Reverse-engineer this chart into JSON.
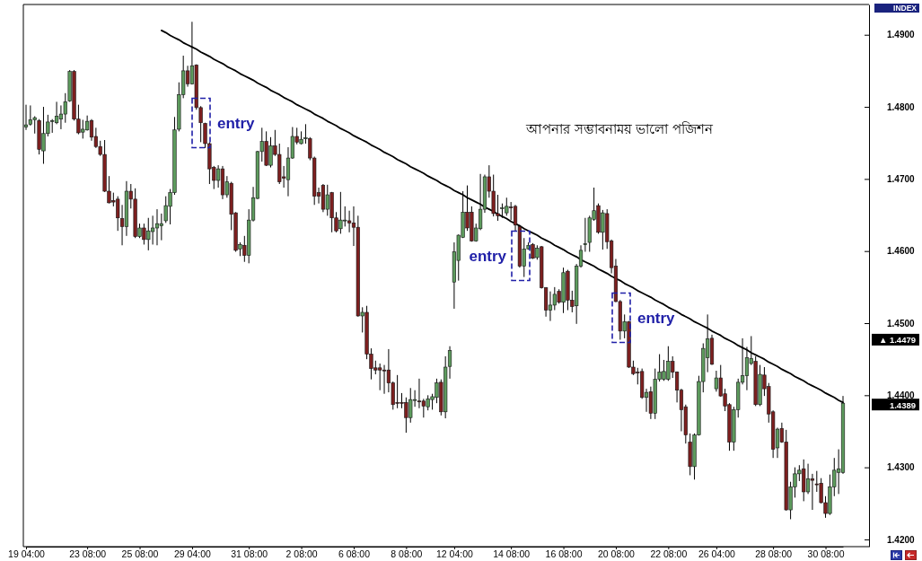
{
  "chart_data": {
    "type": "candlestick",
    "title": "আপনার সম্ভাবনাময় ভালো পজিশন",
    "categories": [
      "19 04:00",
      null,
      null,
      null,
      null,
      null,
      null,
      null,
      null,
      null,
      null,
      null,
      null,
      null,
      "23 08:00",
      null,
      null,
      null,
      null,
      null,
      null,
      null,
      null,
      null,
      null,
      null,
      "25 08:00",
      null,
      null,
      null,
      null,
      null,
      null,
      null,
      null,
      null,
      null,
      null,
      "29 04:00",
      null,
      null,
      null,
      null,
      null,
      null,
      null,
      null,
      null,
      null,
      null,
      null,
      "31 08:00",
      null,
      null,
      null,
      null,
      null,
      null,
      null,
      null,
      null,
      null,
      null,
      "2 08:00",
      null,
      null,
      null,
      null,
      null,
      null,
      null,
      null,
      null,
      null,
      null,
      "6 08:00",
      null,
      null,
      null,
      null,
      null,
      null,
      null,
      null,
      null,
      null,
      null,
      "8 08:00",
      null,
      null,
      null,
      null,
      null,
      null,
      null,
      null,
      null,
      null,
      "12 04:00",
      null,
      null,
      null,
      null,
      null,
      null,
      null,
      null,
      null,
      null,
      null,
      null,
      "14 08:00",
      null,
      null,
      null,
      null,
      null,
      null,
      null,
      null,
      null,
      null,
      null,
      "16 08:00",
      null,
      null,
      null,
      null,
      null,
      null,
      null,
      null,
      null,
      null,
      null,
      "20 08:00",
      null,
      null,
      null,
      null,
      null,
      null,
      null,
      null,
      null,
      null,
      null,
      "22 08:00",
      null,
      null,
      null,
      null,
      null,
      null,
      null,
      null,
      null,
      null,
      "26 04:00",
      null,
      null,
      null,
      null,
      null,
      null,
      null,
      null,
      null,
      null,
      null,
      null,
      "28 08:00",
      null,
      null,
      null,
      null,
      null,
      null,
      null,
      null,
      null,
      null,
      null,
      "30 08:00",
      null,
      null,
      null,
      null
    ],
    "ohlc": [
      [
        1.4772,
        1.4803,
        1.4768,
        1.4775
      ],
      [
        1.4776,
        1.4802,
        1.4774,
        1.4782
      ],
      [
        1.4782,
        1.4787,
        1.4763,
        1.4785
      ],
      [
        1.4781,
        1.4783,
        1.4734,
        1.4741
      ],
      [
        1.4739,
        1.48,
        1.4721,
        1.4763
      ],
      [
        1.4763,
        1.4789,
        1.4759,
        1.4779
      ],
      [
        1.478,
        1.4783,
        1.4764,
        1.4781
      ],
      [
        1.4778,
        1.4807,
        1.4776,
        1.4787
      ],
      [
        1.4783,
        1.4802,
        1.4769,
        1.479
      ],
      [
        1.479,
        1.4819,
        1.4778,
        1.4807
      ],
      [
        1.4808,
        1.4851,
        1.4807,
        1.4849
      ],
      [
        1.4849,
        1.4851,
        1.4781,
        1.4783
      ],
      [
        1.4783,
        1.4803,
        1.4762,
        1.4764
      ],
      [
        1.4765,
        1.4782,
        1.4756,
        1.4769
      ],
      [
        1.4768,
        1.4788,
        1.4767,
        1.478
      ],
      [
        1.4781,
        1.4783,
        1.4753,
        1.4758
      ],
      [
        1.4759,
        1.4771,
        1.4743,
        1.4745
      ],
      [
        1.4745,
        1.4753,
        1.4732,
        1.4734
      ],
      [
        1.4734,
        1.4754,
        1.4682,
        1.4683
      ],
      [
        1.4683,
        1.4704,
        1.4666,
        1.4667
      ],
      [
        1.467,
        1.4681,
        1.4662,
        1.4668
      ],
      [
        1.4672,
        1.4676,
        1.4628,
        1.4646
      ],
      [
        1.4645,
        1.4664,
        1.4608,
        1.4634
      ],
      [
        1.4634,
        1.4697,
        1.4621,
        1.4683
      ],
      [
        1.4683,
        1.4693,
        1.4659,
        1.4672
      ],
      [
        1.4672,
        1.4687,
        1.4618,
        1.462
      ],
      [
        1.462,
        1.4638,
        1.4618,
        1.4632
      ],
      [
        1.4632,
        1.4638,
        1.4609,
        1.4616
      ],
      [
        1.4616,
        1.4646,
        1.4601,
        1.4628
      ],
      [
        1.4627,
        1.4649,
        1.4609,
        1.4632
      ],
      [
        1.4632,
        1.4658,
        1.4608,
        1.4638
      ],
      [
        1.4635,
        1.4652,
        1.4615,
        1.4638
      ],
      [
        1.4642,
        1.4676,
        1.4639,
        1.4663
      ],
      [
        1.4662,
        1.4686,
        1.4637,
        1.4681
      ],
      [
        1.4681,
        1.4786,
        1.4678,
        1.4768
      ],
      [
        1.4769,
        1.4834,
        1.4766,
        1.4817
      ],
      [
        1.4817,
        1.4871,
        1.4812,
        1.485
      ],
      [
        1.485,
        1.4857,
        1.4828,
        1.4832
      ],
      [
        1.4832,
        1.4918,
        1.4831,
        1.4857
      ],
      [
        1.4858,
        1.4859,
        1.4796,
        1.4799
      ],
      [
        1.4799,
        1.4801,
        1.4751,
        1.4778
      ],
      [
        1.4777,
        1.4778,
        1.4743,
        1.4749
      ],
      [
        1.4749,
        1.4751,
        1.4693,
        1.4714
      ],
      [
        1.4716,
        1.4718,
        1.4686,
        1.4698
      ],
      [
        1.4698,
        1.4719,
        1.4688,
        1.4714
      ],
      [
        1.4714,
        1.4718,
        1.4672,
        1.4678
      ],
      [
        1.4678,
        1.4704,
        1.4674,
        1.4696
      ],
      [
        1.4694,
        1.4696,
        1.4629,
        1.4651
      ],
      [
        1.4653,
        1.4654,
        1.4599,
        1.4601
      ],
      [
        1.4603,
        1.4612,
        1.4593,
        1.4609
      ],
      [
        1.4608,
        1.4621,
        1.4585,
        1.4594
      ],
      [
        1.4594,
        1.4658,
        1.4583,
        1.4643
      ],
      [
        1.4643,
        1.4689,
        1.4641,
        1.4674
      ],
      [
        1.4673,
        1.4739,
        1.4672,
        1.4738
      ],
      [
        1.4738,
        1.4771,
        1.4724,
        1.4752
      ],
      [
        1.4752,
        1.4766,
        1.4718,
        1.4719
      ],
      [
        1.4719,
        1.4758,
        1.4716,
        1.4746
      ],
      [
        1.4746,
        1.4768,
        1.4732,
        1.4734
      ],
      [
        1.4734,
        1.4749,
        1.4693,
        1.4696
      ],
      [
        1.4703,
        1.4718,
        1.4688,
        1.4701
      ],
      [
        1.4699,
        1.4744,
        1.4676,
        1.4729
      ],
      [
        1.4729,
        1.4772,
        1.4728,
        1.4759
      ],
      [
        1.4759,
        1.4771,
        1.4748,
        1.4751
      ],
      [
        1.4749,
        1.4766,
        1.4748,
        1.4755
      ],
      [
        1.4756,
        1.4776,
        1.4749,
        1.4757
      ],
      [
        1.4756,
        1.4758,
        1.4726,
        1.4729
      ],
      [
        1.4729,
        1.4731,
        1.4664,
        1.4676
      ],
      [
        1.4681,
        1.4688,
        1.4666,
        1.4676
      ],
      [
        1.4691,
        1.4693,
        1.4654,
        1.4658
      ],
      [
        1.4658,
        1.4692,
        1.4649,
        1.4678
      ],
      [
        1.4681,
        1.4682,
        1.4626,
        1.4646
      ],
      [
        1.4646,
        1.4654,
        1.4626,
        1.4628
      ],
      [
        1.4631,
        1.4682,
        1.4624,
        1.4643
      ],
      [
        1.4642,
        1.4662,
        1.4634,
        1.4643
      ],
      [
        1.4642,
        1.4656,
        1.4626,
        1.4639
      ],
      [
        1.4639,
        1.4662,
        1.4607,
        1.4633
      ],
      [
        1.4633,
        1.4649,
        1.4509,
        1.451
      ],
      [
        1.451,
        1.4522,
        1.4487,
        1.4515
      ],
      [
        1.4515,
        1.4524,
        1.445,
        1.4457
      ],
      [
        1.4457,
        1.4465,
        1.4422,
        1.4437
      ],
      [
        1.4438,
        1.4448,
        1.4429,
        1.4435
      ],
      [
        1.4438,
        1.4444,
        1.4407,
        1.4435
      ],
      [
        1.4435,
        1.4442,
        1.4402,
        1.4434
      ],
      [
        1.4435,
        1.4464,
        1.4404,
        1.4417
      ],
      [
        1.4417,
        1.4419,
        1.438,
        1.4387
      ],
      [
        1.439,
        1.4428,
        1.4382,
        1.4389
      ],
      [
        1.439,
        1.4403,
        1.4382,
        1.4389
      ],
      [
        1.439,
        1.4397,
        1.4348,
        1.4369
      ],
      [
        1.4369,
        1.441,
        1.4362,
        1.4394
      ],
      [
        1.4393,
        1.4407,
        1.4384,
        1.4394
      ],
      [
        1.4392,
        1.4423,
        1.4382,
        1.4391
      ],
      [
        1.4392,
        1.4395,
        1.4369,
        1.4385
      ],
      [
        1.4384,
        1.44,
        1.4379,
        1.4395
      ],
      [
        1.4394,
        1.4402,
        1.438,
        1.4398
      ],
      [
        1.4397,
        1.4423,
        1.4389,
        1.4417
      ],
      [
        1.4418,
        1.4422,
        1.4372,
        1.4377
      ],
      [
        1.4377,
        1.4454,
        1.4368,
        1.4439
      ],
      [
        1.444,
        1.4468,
        1.4423,
        1.4462
      ],
      [
        1.4557,
        1.4612,
        1.452,
        1.4599
      ],
      [
        1.4587,
        1.4623,
        1.4559,
        1.4622
      ],
      [
        1.4619,
        1.4683,
        1.4618,
        1.4654
      ],
      [
        1.4654,
        1.4691,
        1.4628,
        1.4632
      ],
      [
        1.4654,
        1.4662,
        1.4613,
        1.4614
      ],
      [
        1.4614,
        1.4638,
        1.4613,
        1.4632
      ],
      [
        1.4631,
        1.4707,
        1.4629,
        1.4658
      ],
      [
        1.4658,
        1.4706,
        1.4653,
        1.4703
      ],
      [
        1.4703,
        1.4719,
        1.4674,
        1.4683
      ],
      [
        1.4683,
        1.4706,
        1.4648,
        1.4652
      ],
      [
        1.4652,
        1.4678,
        1.4642,
        1.4649
      ],
      [
        1.4659,
        1.4666,
        1.4646,
        1.466
      ],
      [
        1.4653,
        1.4674,
        1.4649,
        1.4662
      ],
      [
        1.4661,
        1.4668,
        1.4643,
        1.466
      ],
      [
        1.4662,
        1.4664,
        1.4628,
        1.4636
      ],
      [
        1.4634,
        1.4636,
        1.4577,
        1.4579
      ],
      [
        1.4579,
        1.4618,
        1.4564,
        1.4603
      ],
      [
        1.4603,
        1.4612,
        1.4602,
        1.4608
      ],
      [
        1.4609,
        1.4611,
        1.4589,
        1.459
      ],
      [
        1.4591,
        1.4608,
        1.4588,
        1.4604
      ],
      [
        1.4606,
        1.4607,
        1.4548,
        1.4549
      ],
      [
        1.4549,
        1.455,
        1.4509,
        1.4518
      ],
      [
        1.4518,
        1.4544,
        1.4503,
        1.4525
      ],
      [
        1.4525,
        1.455,
        1.4518,
        1.454
      ],
      [
        1.4544,
        1.4547,
        1.4527,
        1.4529
      ],
      [
        1.4529,
        1.4577,
        1.4514,
        1.457
      ],
      [
        1.4572,
        1.4574,
        1.4518,
        1.4532
      ],
      [
        1.4532,
        1.4545,
        1.4515,
        1.4523
      ],
      [
        1.4524,
        1.4582,
        1.4499,
        1.4579
      ],
      [
        1.4579,
        1.4608,
        1.4577,
        1.4601
      ],
      [
        1.4609,
        1.4646,
        1.4599,
        1.461
      ],
      [
        1.4612,
        1.4649,
        1.4599,
        1.4646
      ],
      [
        1.4644,
        1.4688,
        1.4642,
        1.4656
      ],
      [
        1.4663,
        1.4666,
        1.4624,
        1.4626
      ],
      [
        1.4626,
        1.4657,
        1.4602,
        1.4653
      ],
      [
        1.4652,
        1.4658,
        1.4603,
        1.4613
      ],
      [
        1.4614,
        1.4616,
        1.4569,
        1.4577
      ],
      [
        1.4579,
        1.4589,
        1.4529,
        1.453
      ],
      [
        1.453,
        1.4532,
        1.4477,
        1.4489
      ],
      [
        1.4489,
        1.4512,
        1.4479,
        1.4502
      ],
      [
        1.4502,
        1.4503,
        1.4438,
        1.4439
      ],
      [
        1.4439,
        1.4448,
        1.4428,
        1.443
      ],
      [
        1.4432,
        1.4438,
        1.4415,
        1.4431
      ],
      [
        1.4433,
        1.4437,
        1.4395,
        1.4397
      ],
      [
        1.4397,
        1.4409,
        1.4377,
        1.4404
      ],
      [
        1.4405,
        1.4412,
        1.4367,
        1.4375
      ],
      [
        1.4375,
        1.4437,
        1.4367,
        1.4422
      ],
      [
        1.4422,
        1.4457,
        1.4419,
        1.4432
      ],
      [
        1.4422,
        1.4449,
        1.442,
        1.4433
      ],
      [
        1.4422,
        1.4468,
        1.442,
        1.4447
      ],
      [
        1.4447,
        1.4454,
        1.4424,
        1.4432
      ],
      [
        1.4432,
        1.4433,
        1.439,
        1.4407
      ],
      [
        1.4407,
        1.4409,
        1.435,
        1.438
      ],
      [
        1.4384,
        1.4387,
        1.4333,
        1.4345
      ],
      [
        1.4335,
        1.4347,
        1.4289,
        1.4301
      ],
      [
        1.4301,
        1.4347,
        1.4283,
        1.4345
      ],
      [
        1.4345,
        1.4427,
        1.4344,
        1.4419
      ],
      [
        1.4419,
        1.4472,
        1.4404,
        1.4465
      ],
      [
        1.4452,
        1.4512,
        1.4432,
        1.4478
      ],
      [
        1.4479,
        1.4484,
        1.4442,
        1.4443
      ],
      [
        1.4409,
        1.4434,
        1.4405,
        1.4424
      ],
      [
        1.4424,
        1.4442,
        1.4398,
        1.4399
      ],
      [
        1.4402,
        1.4409,
        1.4378,
        1.4385
      ],
      [
        1.4387,
        1.4389,
        1.4323,
        1.4335
      ],
      [
        1.4335,
        1.4384,
        1.4323,
        1.438
      ],
      [
        1.438,
        1.4423,
        1.4369,
        1.4418
      ],
      [
        1.4418,
        1.4479,
        1.4415,
        1.4427
      ],
      [
        1.4427,
        1.4467,
        1.4407,
        1.4452
      ],
      [
        1.4444,
        1.4482,
        1.4442,
        1.4451
      ],
      [
        1.4447,
        1.4454,
        1.4385,
        1.4387
      ],
      [
        1.4387,
        1.4442,
        1.4385,
        1.4429
      ],
      [
        1.4428,
        1.4439,
        1.4399,
        1.4409
      ],
      [
        1.4412,
        1.4417,
        1.4362,
        1.4374
      ],
      [
        1.4377,
        1.4379,
        1.4313,
        1.4325
      ],
      [
        1.4327,
        1.4355,
        1.4313,
        1.4353
      ],
      [
        1.4354,
        1.4362,
        1.4334,
        1.4335
      ],
      [
        1.4335,
        1.4352,
        1.424,
        1.4241
      ],
      [
        1.4241,
        1.428,
        1.4228,
        1.4273
      ],
      [
        1.4273,
        1.43,
        1.4258,
        1.4291
      ],
      [
        1.4291,
        1.4303,
        1.4281,
        1.4296
      ],
      [
        1.4298,
        1.4311,
        1.4253,
        1.4266
      ],
      [
        1.4266,
        1.4305,
        1.4263,
        1.4284
      ],
      [
        1.4284,
        1.4291,
        1.4241,
        1.4282
      ],
      [
        1.4277,
        1.4295,
        1.4266,
        1.4276
      ],
      [
        1.4278,
        1.4285,
        1.425,
        1.4251
      ],
      [
        1.4251,
        1.426,
        1.423,
        1.4236
      ],
      [
        1.4236,
        1.429,
        1.4234,
        1.4273
      ],
      [
        1.4273,
        1.4313,
        1.426,
        1.4296
      ],
      [
        1.4293,
        1.4325,
        1.4263,
        1.4298
      ],
      [
        1.4293,
        1.4399,
        1.4291,
        1.4389
      ]
    ],
    "colors": [
      "#5d9b5d",
      "#5d9b5d",
      "#5d9b5d",
      "#7d1f1f",
      "#5d9b5d",
      "#5d9b5d",
      "#5d9b5d",
      "#5d9b5d",
      "#5d9b5d",
      "#5d9b5d",
      "#5d9b5d",
      "#7d1f1f",
      "#7d1f1f",
      "#5d9b5d",
      "#5d9b5d",
      "#7d1f1f",
      "#7d1f1f",
      "#7d1f1f",
      "#7d1f1f",
      "#7d1f1f",
      "#7d1f1f",
      "#7d1f1f",
      "#7d1f1f",
      "#5d9b5d",
      "#7d1f1f",
      "#7d1f1f",
      "#5d9b5d",
      "#7d1f1f",
      "#5d9b5d",
      "#5d9b5d",
      "#5d9b5d",
      "#5d9b5d",
      "#5d9b5d",
      "#5d9b5d",
      "#5d9b5d",
      "#5d9b5d",
      "#5d9b5d",
      "#7d1f1f",
      "#5d9b5d",
      "#7d1f1f",
      "#7d1f1f",
      "#7d1f1f",
      "#7d1f1f",
      "#7d1f1f",
      "#5d9b5d",
      "#7d1f1f",
      "#5d9b5d",
      "#7d1f1f",
      "#7d1f1f",
      "#5d9b5d",
      "#7d1f1f",
      "#5d9b5d",
      "#5d9b5d",
      "#5d9b5d",
      "#5d9b5d",
      "#7d1f1f",
      "#5d9b5d",
      "#7d1f1f",
      "#7d1f1f",
      "#7d1f1f",
      "#5d9b5d",
      "#5d9b5d",
      "#7d1f1f",
      "#5d9b5d",
      "#5d9b5d",
      "#7d1f1f",
      "#7d1f1f",
      "#7d1f1f",
      "#7d1f1f",
      "#5d9b5d",
      "#7d1f1f",
      "#7d1f1f",
      "#5d9b5d",
      "#5d9b5d",
      "#7d1f1f",
      "#7d1f1f",
      "#7d1f1f",
      "#5d9b5d",
      "#7d1f1f",
      "#7d1f1f",
      "#7d1f1f",
      "#7d1f1f",
      "#7d1f1f",
      "#7d1f1f",
      "#7d1f1f",
      "#7d1f1f",
      "#7d1f1f",
      "#7d1f1f",
      "#5d9b5d",
      "#5d9b5d",
      "#7d1f1f",
      "#7d1f1f",
      "#5d9b5d",
      "#5d9b5d",
      "#5d9b5d",
      "#7d1f1f",
      "#5d9b5d",
      "#5d9b5d",
      "#5d9b5d",
      "#5d9b5d",
      "#5d9b5d",
      "#7d1f1f",
      "#7d1f1f",
      "#5d9b5d",
      "#5d9b5d",
      "#5d9b5d",
      "#7d1f1f",
      "#7d1f1f",
      "#7d1f1f",
      "#5d9b5d",
      "#5d9b5d",
      "#7d1f1f",
      "#7d1f1f",
      "#7d1f1f",
      "#5d9b5d",
      "#5d9b5d",
      "#7d1f1f",
      "#5d9b5d",
      "#7d1f1f",
      "#7d1f1f",
      "#5d9b5d",
      "#5d9b5d",
      "#7d1f1f",
      "#5d9b5d",
      "#7d1f1f",
      "#7d1f1f",
      "#5d9b5d",
      "#5d9b5d",
      "#5d9b5d",
      "#5d9b5d",
      "#5d9b5d",
      "#7d1f1f",
      "#5d9b5d",
      "#7d1f1f",
      "#7d1f1f",
      "#7d1f1f",
      "#7d1f1f",
      "#5d9b5d",
      "#7d1f1f",
      "#7d1f1f",
      "#7d1f1f",
      "#7d1f1f",
      "#5d9b5d",
      "#7d1f1f",
      "#5d9b5d",
      "#5d9b5d",
      "#5d9b5d",
      "#5d9b5d",
      "#7d1f1f",
      "#7d1f1f",
      "#7d1f1f",
      "#7d1f1f",
      "#7d1f1f",
      "#5d9b5d",
      "#5d9b5d",
      "#5d9b5d",
      "#5d9b5d",
      "#7d1f1f",
      "#5d9b5d",
      "#7d1f1f",
      "#7d1f1f",
      "#7d1f1f",
      "#5d9b5d",
      "#5d9b5d",
      "#5d9b5d",
      "#5d9b5d",
      "#5d9b5d",
      "#7d1f1f",
      "#5d9b5d",
      "#7d1f1f",
      "#7d1f1f",
      "#7d1f1f",
      "#5d9b5d",
      "#7d1f1f",
      "#7d1f1f",
      "#5d9b5d",
      "#5d9b5d",
      "#5d9b5d",
      "#7d1f1f",
      "#5d9b5d",
      "#7d1f1f",
      "#7d1f1f",
      "#7d1f1f",
      "#7d1f1f",
      "#5d9b5d",
      "#5d9b5d",
      "#5d9b5d",
      "#5d9b5d"
    ],
    "series": [
      {
        "type": "line",
        "color": "#000000",
        "values": [
          null,
          null,
          null,
          null,
          null,
          null,
          null,
          null,
          null,
          null,
          null,
          null,
          null,
          null,
          null,
          null,
          null,
          null,
          null,
          null,
          null,
          null,
          null,
          null,
          null,
          null,
          null,
          null,
          null,
          null,
          null,
          1.4906,
          1.4903,
          1.4899,
          1.4896,
          1.4893,
          1.4889,
          1.4886,
          1.4883,
          1.488,
          1.4876,
          1.4873,
          1.487,
          1.4866,
          1.4863,
          1.486,
          1.4856,
          1.4853,
          1.485,
          1.4846,
          1.4843,
          1.484,
          1.4837,
          1.4833,
          1.483,
          1.4827,
          1.4823,
          1.482,
          1.4817,
          1.4813,
          1.481,
          1.4807,
          1.4803,
          1.48,
          1.4797,
          1.4794,
          1.479,
          1.4787,
          1.4784,
          1.478,
          1.4777,
          1.4774,
          1.477,
          1.4767,
          1.4764,
          1.476,
          1.4757,
          1.4754,
          1.4751,
          1.4747,
          1.4744,
          1.4741,
          1.4737,
          1.4734,
          1.4731,
          1.4727,
          1.4724,
          1.4721,
          1.4717,
          1.4714,
          1.4711,
          1.4708,
          1.4704,
          1.4701,
          1.4698,
          1.4694,
          1.4691,
          1.4688,
          1.4684,
          1.4681,
          1.4678,
          1.4674,
          1.4671,
          1.4668,
          1.4665,
          1.4661,
          1.4658,
          1.4655,
          1.4651,
          1.4648,
          1.4645,
          1.4641,
          1.4638,
          1.4635,
          1.4631,
          1.4628,
          1.4625,
          1.4622,
          1.4618,
          1.4615,
          1.4612,
          1.4608,
          1.4605,
          1.4602,
          1.4598,
          1.4595,
          1.4592,
          1.4588,
          1.4585,
          1.4582,
          1.4579,
          1.4575,
          1.4572,
          1.4569,
          1.4565,
          1.4562,
          1.4559,
          1.4555,
          1.4552,
          1.4549,
          1.4545,
          1.4542,
          1.4539,
          1.4536,
          1.4532,
          1.4529,
          1.4526,
          1.4522,
          1.4519,
          1.4516,
          1.4512,
          1.4509,
          1.4506,
          1.4502,
          1.4499,
          1.4496,
          1.4493,
          1.4489,
          1.4486,
          1.4483,
          1.4479,
          1.4476,
          1.4473,
          1.4469,
          1.4466,
          1.4463,
          1.4459,
          1.4456,
          1.4453,
          1.445,
          1.4446,
          1.4443,
          1.444,
          1.4436,
          1.4433,
          1.443,
          1.4426,
          1.4423,
          1.442,
          1.4416,
          1.4413,
          1.441,
          1.4407,
          1.4403,
          1.44,
          1.4397,
          1.4393,
          1.439
        ]
      }
    ],
    "ylim": [
      1.419,
      1.4942
    ],
    "yticks": [
      {
        "value": 1.42,
        "label": "1.4200"
      },
      {
        "value": 1.43,
        "label": "1.4300"
      },
      {
        "value": 1.44,
        "label": "1.4400"
      },
      {
        "value": 1.45,
        "label": "1.4500"
      },
      {
        "value": 1.46,
        "label": "1.4600"
      },
      {
        "value": 1.47,
        "label": "1.4700"
      },
      {
        "value": 1.48,
        "label": "1.4800"
      },
      {
        "value": 1.49,
        "label": "1.4900"
      }
    ],
    "annotations": [
      "INDEX",
      "entry",
      "entry",
      "entry",
      "▲ 1.4479",
      "1.4389"
    ]
  }
}
